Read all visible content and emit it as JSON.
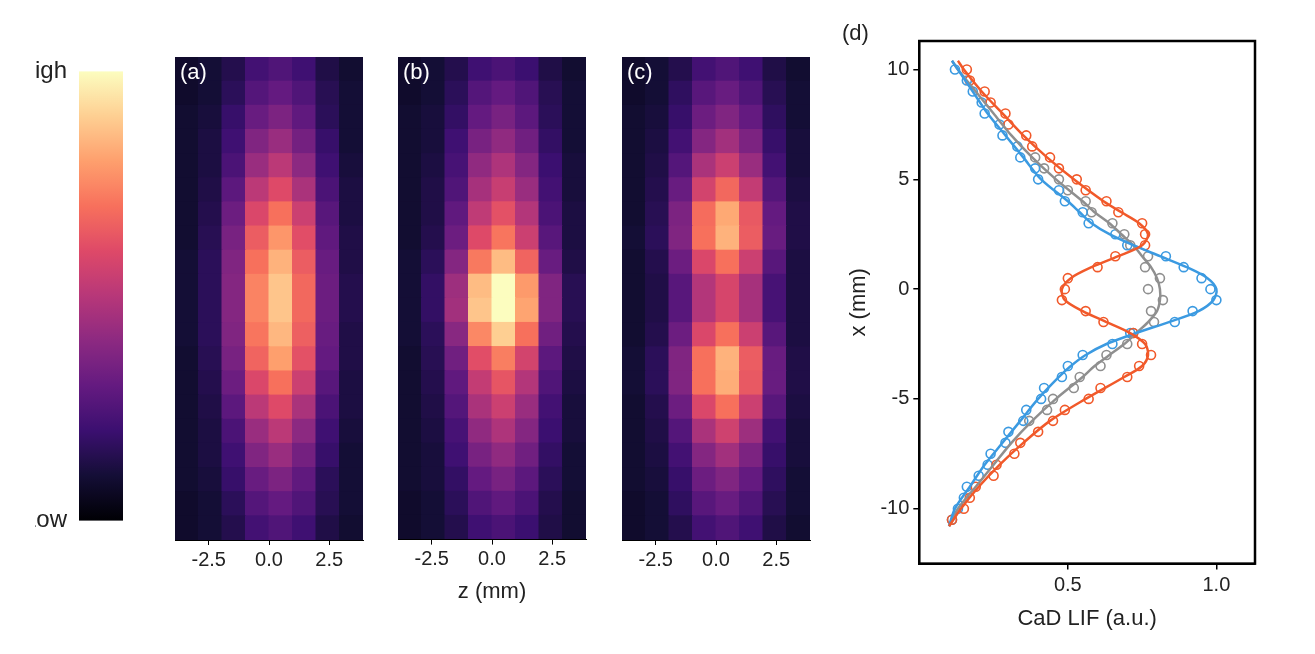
{
  "colorbar": {
    "range": [
      0,
      1
    ],
    "ticks": [
      {
        "value": 0,
        "label": "Low"
      },
      {
        "value": 1,
        "label": "High"
      }
    ]
  },
  "chart_data": [
    {
      "type": "heatmap",
      "label": "(a)",
      "xlim": [
        -3.9,
        3.9
      ],
      "xticks": [
        -2.5,
        {
          "value": 0,
          "label": "0.0"
        },
        2.5
      ],
      "ylim": [
        -10,
        10
      ],
      "tick_labels": "x",
      "x": [
        -3.41,
        -2.44,
        -1.46,
        -0.49,
        0.49,
        1.46,
        2.44,
        3.41
      ],
      "y": [
        9.5,
        8.5,
        7.5,
        6.5,
        5.5,
        4.5,
        3.5,
        2.5,
        1.5,
        0.5,
        -0.5,
        -1.5,
        -2.5,
        -3.5,
        -4.5,
        -5.5,
        -6.5,
        -7.5,
        -8.5,
        -9.5
      ],
      "cells": [
        [
          0.08,
          0.1,
          0.14,
          0.22,
          0.25,
          0.21,
          0.13,
          0.09
        ],
        [
          0.08,
          0.1,
          0.16,
          0.26,
          0.3,
          0.25,
          0.15,
          0.1
        ],
        [
          0.09,
          0.11,
          0.19,
          0.31,
          0.36,
          0.29,
          0.16,
          0.1
        ],
        [
          0.09,
          0.12,
          0.21,
          0.37,
          0.43,
          0.34,
          0.19,
          0.1
        ],
        [
          0.09,
          0.12,
          0.24,
          0.43,
          0.51,
          0.4,
          0.21,
          0.11
        ],
        [
          0.09,
          0.13,
          0.28,
          0.51,
          0.6,
          0.47,
          0.24,
          0.12
        ],
        [
          0.09,
          0.14,
          0.32,
          0.59,
          0.7,
          0.55,
          0.27,
          0.12
        ],
        [
          0.09,
          0.15,
          0.35,
          0.65,
          0.78,
          0.61,
          0.29,
          0.13
        ],
        [
          0.1,
          0.16,
          0.37,
          0.7,
          0.84,
          0.65,
          0.31,
          0.13
        ],
        [
          0.1,
          0.16,
          0.38,
          0.74,
          0.88,
          0.68,
          0.32,
          0.14
        ],
        [
          0.1,
          0.16,
          0.38,
          0.74,
          0.88,
          0.68,
          0.32,
          0.14
        ],
        [
          0.1,
          0.16,
          0.37,
          0.71,
          0.85,
          0.66,
          0.31,
          0.13
        ],
        [
          0.09,
          0.15,
          0.35,
          0.67,
          0.8,
          0.62,
          0.3,
          0.13
        ],
        [
          0.09,
          0.14,
          0.32,
          0.59,
          0.7,
          0.55,
          0.27,
          0.12
        ],
        [
          0.09,
          0.13,
          0.28,
          0.51,
          0.6,
          0.47,
          0.24,
          0.12
        ],
        [
          0.09,
          0.12,
          0.24,
          0.43,
          0.51,
          0.4,
          0.21,
          0.11
        ],
        [
          0.09,
          0.12,
          0.21,
          0.37,
          0.43,
          0.34,
          0.19,
          0.1
        ],
        [
          0.09,
          0.11,
          0.19,
          0.31,
          0.36,
          0.29,
          0.16,
          0.1
        ],
        [
          0.08,
          0.1,
          0.16,
          0.26,
          0.3,
          0.25,
          0.15,
          0.1
        ],
        [
          0.08,
          0.1,
          0.14,
          0.22,
          0.25,
          0.21,
          0.13,
          0.09
        ]
      ]
    },
    {
      "type": "heatmap",
      "label": "(b)",
      "xlabel": "z (mm)",
      "xlim": [
        -3.9,
        3.9
      ],
      "xticks": [
        -2.5,
        {
          "value": 0,
          "label": "0.0"
        },
        2.5
      ],
      "ylim": [
        -10,
        10
      ],
      "tick_labels": "x",
      "x": [
        -3.41,
        -2.44,
        -1.46,
        -0.49,
        0.49,
        1.46,
        2.44,
        3.41
      ],
      "y": [
        9.5,
        8.5,
        7.5,
        6.5,
        5.5,
        4.5,
        3.5,
        2.5,
        1.5,
        0.5,
        -0.5,
        -1.5,
        -2.5,
        -3.5,
        -4.5,
        -5.5,
        -6.5,
        -7.5,
        -8.5,
        -9.5
      ],
      "cells": [
        [
          0.08,
          0.1,
          0.14,
          0.21,
          0.24,
          0.2,
          0.13,
          0.09
        ],
        [
          0.08,
          0.1,
          0.16,
          0.26,
          0.3,
          0.25,
          0.15,
          0.1
        ],
        [
          0.09,
          0.11,
          0.18,
          0.3,
          0.35,
          0.28,
          0.16,
          0.1
        ],
        [
          0.09,
          0.11,
          0.21,
          0.35,
          0.41,
          0.33,
          0.18,
          0.1
        ],
        [
          0.09,
          0.12,
          0.23,
          0.41,
          0.48,
          0.38,
          0.2,
          0.11
        ],
        [
          0.09,
          0.13,
          0.25,
          0.46,
          0.54,
          0.43,
          0.22,
          0.11
        ],
        [
          0.09,
          0.13,
          0.29,
          0.52,
          0.62,
          0.49,
          0.24,
          0.12
        ],
        [
          0.09,
          0.14,
          0.32,
          0.6,
          0.71,
          0.55,
          0.27,
          0.12
        ],
        [
          0.1,
          0.16,
          0.38,
          0.72,
          0.86,
          0.67,
          0.31,
          0.13
        ],
        [
          0.1,
          0.18,
          0.44,
          0.86,
          1.0,
          0.79,
          0.37,
          0.15
        ],
        [
          0.1,
          0.18,
          0.45,
          0.88,
          1.0,
          0.81,
          0.37,
          0.15
        ],
        [
          0.1,
          0.16,
          0.39,
          0.75,
          0.9,
          0.7,
          0.33,
          0.14
        ],
        [
          0.09,
          0.15,
          0.33,
          0.61,
          0.73,
          0.57,
          0.28,
          0.13
        ],
        [
          0.09,
          0.14,
          0.29,
          0.53,
          0.63,
          0.49,
          0.25,
          0.12
        ],
        [
          0.09,
          0.13,
          0.26,
          0.47,
          0.55,
          0.43,
          0.22,
          0.11
        ],
        [
          0.09,
          0.12,
          0.23,
          0.41,
          0.48,
          0.38,
          0.2,
          0.11
        ],
        [
          0.09,
          0.11,
          0.21,
          0.35,
          0.41,
          0.33,
          0.18,
          0.1
        ],
        [
          0.09,
          0.11,
          0.18,
          0.3,
          0.35,
          0.28,
          0.16,
          0.1
        ],
        [
          0.08,
          0.1,
          0.16,
          0.25,
          0.29,
          0.24,
          0.14,
          0.09
        ],
        [
          0.08,
          0.1,
          0.14,
          0.21,
          0.24,
          0.2,
          0.13,
          0.09
        ]
      ]
    },
    {
      "type": "heatmap",
      "label": "(c)",
      "xlim": [
        -3.9,
        3.9
      ],
      "xticks": [
        -2.5,
        {
          "value": 0,
          "label": "0.0"
        },
        2.5
      ],
      "ylim": [
        -10,
        10
      ],
      "tick_labels": "x",
      "x": [
        -3.41,
        -2.44,
        -1.46,
        -0.49,
        0.49,
        1.46,
        2.44,
        3.41
      ],
      "y": [
        9.5,
        8.5,
        7.5,
        6.5,
        5.5,
        4.5,
        3.5,
        2.5,
        1.5,
        0.5,
        -0.5,
        -1.5,
        -2.5,
        -3.5,
        -4.5,
        -5.5,
        -6.5,
        -7.5,
        -8.5,
        -9.5
      ],
      "cells": [
        [
          0.08,
          0.1,
          0.14,
          0.22,
          0.25,
          0.21,
          0.13,
          0.09
        ],
        [
          0.08,
          0.1,
          0.17,
          0.27,
          0.31,
          0.25,
          0.15,
          0.1
        ],
        [
          0.09,
          0.11,
          0.19,
          0.32,
          0.37,
          0.3,
          0.17,
          0.1
        ],
        [
          0.09,
          0.12,
          0.22,
          0.38,
          0.45,
          0.36,
          0.19,
          0.11
        ],
        [
          0.09,
          0.13,
          0.26,
          0.47,
          0.55,
          0.43,
          0.22,
          0.11
        ],
        [
          0.09,
          0.14,
          0.31,
          0.57,
          0.68,
          0.53,
          0.26,
          0.12
        ],
        [
          0.09,
          0.15,
          0.36,
          0.69,
          0.82,
          0.64,
          0.3,
          0.13
        ],
        [
          0.1,
          0.16,
          0.37,
          0.7,
          0.84,
          0.65,
          0.31,
          0.13
        ],
        [
          0.09,
          0.14,
          0.32,
          0.59,
          0.7,
          0.55,
          0.27,
          0.12
        ],
        [
          0.09,
          0.13,
          0.27,
          0.49,
          0.58,
          0.46,
          0.23,
          0.12
        ],
        [
          0.09,
          0.13,
          0.27,
          0.49,
          0.58,
          0.46,
          0.23,
          0.12
        ],
        [
          0.09,
          0.14,
          0.32,
          0.59,
          0.7,
          0.55,
          0.27,
          0.12
        ],
        [
          0.1,
          0.16,
          0.37,
          0.7,
          0.84,
          0.65,
          0.31,
          0.13
        ],
        [
          0.1,
          0.16,
          0.37,
          0.7,
          0.83,
          0.64,
          0.31,
          0.13
        ],
        [
          0.09,
          0.14,
          0.32,
          0.59,
          0.7,
          0.55,
          0.27,
          0.12
        ],
        [
          0.09,
          0.13,
          0.26,
          0.47,
          0.56,
          0.44,
          0.22,
          0.11
        ],
        [
          0.09,
          0.12,
          0.22,
          0.38,
          0.45,
          0.36,
          0.19,
          0.11
        ],
        [
          0.09,
          0.11,
          0.19,
          0.32,
          0.37,
          0.3,
          0.17,
          0.1
        ],
        [
          0.08,
          0.1,
          0.17,
          0.27,
          0.31,
          0.25,
          0.15,
          0.1
        ],
        [
          0.08,
          0.1,
          0.14,
          0.22,
          0.25,
          0.21,
          0.13,
          0.09
        ]
      ]
    },
    {
      "type": "scatter",
      "label": "(d)",
      "xlabel": "CaD LIF (a.u.)",
      "ylabel": "x (mm)",
      "xlim": [
        0,
        1.13
      ],
      "xticks": [
        0.5,
        {
          "value": 1,
          "label": "1.0"
        }
      ],
      "ylim": [
        -12.5,
        11.3
      ],
      "yticks": [
        -10,
        -5,
        0,
        5,
        10
      ],
      "series": [
        {
          "type": "scatter",
          "color": "#8f8f8f",
          "marker": "open_circle",
          "x": [
            0.37,
            0.43,
            0.45,
            0.52,
            0.54,
            0.61,
            0.63,
            0.7,
            0.72,
            0.79,
            0.78,
            0.82,
            0.77,
            0.81,
            0.76,
            0.77,
            0.71,
            0.69,
            0.65,
            0.58,
            0.56,
            0.5,
            0.47,
            0.42,
            0.39
          ],
          "y": [
            -6,
            -5.5,
            -5,
            -4.5,
            -4,
            -3.5,
            -3,
            -2.5,
            -2,
            -1.5,
            -1,
            -0.5,
            0,
            0.5,
            1,
            1.5,
            2,
            2.5,
            3,
            3.5,
            4,
            4.5,
            5,
            5.5,
            6
          ]
        },
        {
          "type": "scatter",
          "color": "#3b9ae1",
          "marker": "open_circle",
          "x": [
            0.11,
            0.13,
            0.15,
            0.16,
            0.2,
            0.23,
            0.24,
            0.29,
            0.3,
            0.35,
            0.36,
            0.41,
            0.42,
            0.48,
            0.5,
            0.55,
            0.65,
            0.71,
            0.86,
            0.92,
            1.0,
            0.98,
            0.95,
            0.89,
            0.83,
            0.7,
            0.66,
            0.57,
            0.55,
            0.49,
            0.47,
            0.4,
            0.39,
            0.34,
            0.33,
            0.28,
            0.27,
            0.22,
            0.21,
            0.18,
            0.16,
            0.12
          ],
          "y": [
            -10.5,
            -10,
            -9.5,
            -9,
            -8.5,
            -8,
            -7.5,
            -7,
            -6.5,
            -6,
            -5.5,
            -5,
            -4.5,
            -4,
            -3.5,
            -3,
            -2.5,
            -2,
            -1.5,
            -1,
            -0.5,
            0,
            0.5,
            1,
            1.5,
            2,
            2.5,
            3,
            3.5,
            4,
            4.5,
            5,
            5.5,
            6,
            6.5,
            7,
            7.5,
            8,
            8.5,
            9,
            9.5,
            10
          ]
        },
        {
          "type": "scatter",
          "color": "#f1592a",
          "marker": "open_circle",
          "x": [
            0.11,
            0.15,
            0.17,
            0.19,
            0.25,
            0.26,
            0.32,
            0.34,
            0.4,
            0.45,
            0.49,
            0.57,
            0.61,
            0.7,
            0.74,
            0.78,
            0.75,
            0.72,
            0.62,
            0.56,
            0.48,
            0.49,
            0.5,
            0.6,
            0.66,
            0.76,
            0.76,
            0.75,
            0.67,
            0.63,
            0.56,
            0.53,
            0.47,
            0.44,
            0.38,
            0.36,
            0.3,
            0.29,
            0.24,
            0.22,
            0.17,
            0.16
          ],
          "y": [
            -10.5,
            -10,
            -9.5,
            -9,
            -8.5,
            -8,
            -7.5,
            -7,
            -6.5,
            -6,
            -5.5,
            -5,
            -4.5,
            -4,
            -3.5,
            -3,
            -2.5,
            -2,
            -1.5,
            -1,
            -0.5,
            0,
            0.5,
            1,
            1.5,
            2,
            2.5,
            3,
            3.5,
            4,
            4.5,
            5,
            5.5,
            6,
            6.5,
            7,
            7.5,
            8,
            8.5,
            9,
            9.5,
            10
          ]
        },
        {
          "type": "line",
          "color": "#8f8f8f",
          "line_style": "solid",
          "x": [
            0.1,
            0.13,
            0.19,
            0.25,
            0.31,
            0.38,
            0.46,
            0.55,
            0.59,
            0.64,
            0.69,
            0.73,
            0.77,
            0.8,
            0.81,
            0.81,
            0.8,
            0.78,
            0.75,
            0.72,
            0.68,
            0.64,
            0.59,
            0.55,
            0.46,
            0.38,
            0.31,
            0.25,
            0.19,
            0.13,
            0.11
          ],
          "y": [
            -10.8,
            -10,
            -9,
            -8,
            -7,
            -6,
            -5,
            -4,
            -3.5,
            -3,
            -2.5,
            -2,
            -1.5,
            -1,
            -0.5,
            0,
            0.5,
            1,
            1.5,
            2,
            2.5,
            3,
            3.5,
            4,
            5,
            6,
            7,
            8,
            9,
            10,
            10.4
          ]
        },
        {
          "type": "line",
          "color": "#3b9ae1",
          "line_style": "solid",
          "x": [
            0.1,
            0.12,
            0.17,
            0.22,
            0.28,
            0.34,
            0.4,
            0.47,
            0.51,
            0.56,
            0.63,
            0.73,
            0.84,
            0.94,
            0.99,
            1.0,
            0.97,
            0.9,
            0.81,
            0.72,
            0.64,
            0.58,
            0.54,
            0.5,
            0.41,
            0.35,
            0.29,
            0.23,
            0.18,
            0.13,
            0.11
          ],
          "y": [
            -10.8,
            -10,
            -9,
            -8,
            -7,
            -6,
            -5,
            -4,
            -3.5,
            -3,
            -2.5,
            -2,
            -1.5,
            -1,
            -0.5,
            0,
            0.5,
            1,
            1.5,
            2,
            2.5,
            3,
            3.5,
            4,
            5,
            6,
            7,
            8,
            9,
            10,
            10.4
          ]
        },
        {
          "type": "line",
          "color": "#f1592a",
          "line_style": "solid",
          "x": [
            0.1,
            0.14,
            0.2,
            0.27,
            0.35,
            0.44,
            0.56,
            0.69,
            0.75,
            0.77,
            0.76,
            0.71,
            0.63,
            0.55,
            0.49,
            0.48,
            0.51,
            0.58,
            0.67,
            0.75,
            0.77,
            0.74,
            0.68,
            0.62,
            0.52,
            0.43,
            0.35,
            0.28,
            0.21,
            0.15,
            0.13
          ],
          "y": [
            -10.8,
            -10,
            -9,
            -8,
            -7,
            -6,
            -5,
            -4,
            -3.5,
            -3,
            -2.5,
            -2,
            -1.5,
            -1,
            -0.5,
            0,
            0.5,
            1,
            1.5,
            2,
            2.5,
            3,
            3.5,
            4,
            5,
            6,
            7,
            8,
            9,
            10,
            10.4
          ]
        }
      ]
    }
  ]
}
